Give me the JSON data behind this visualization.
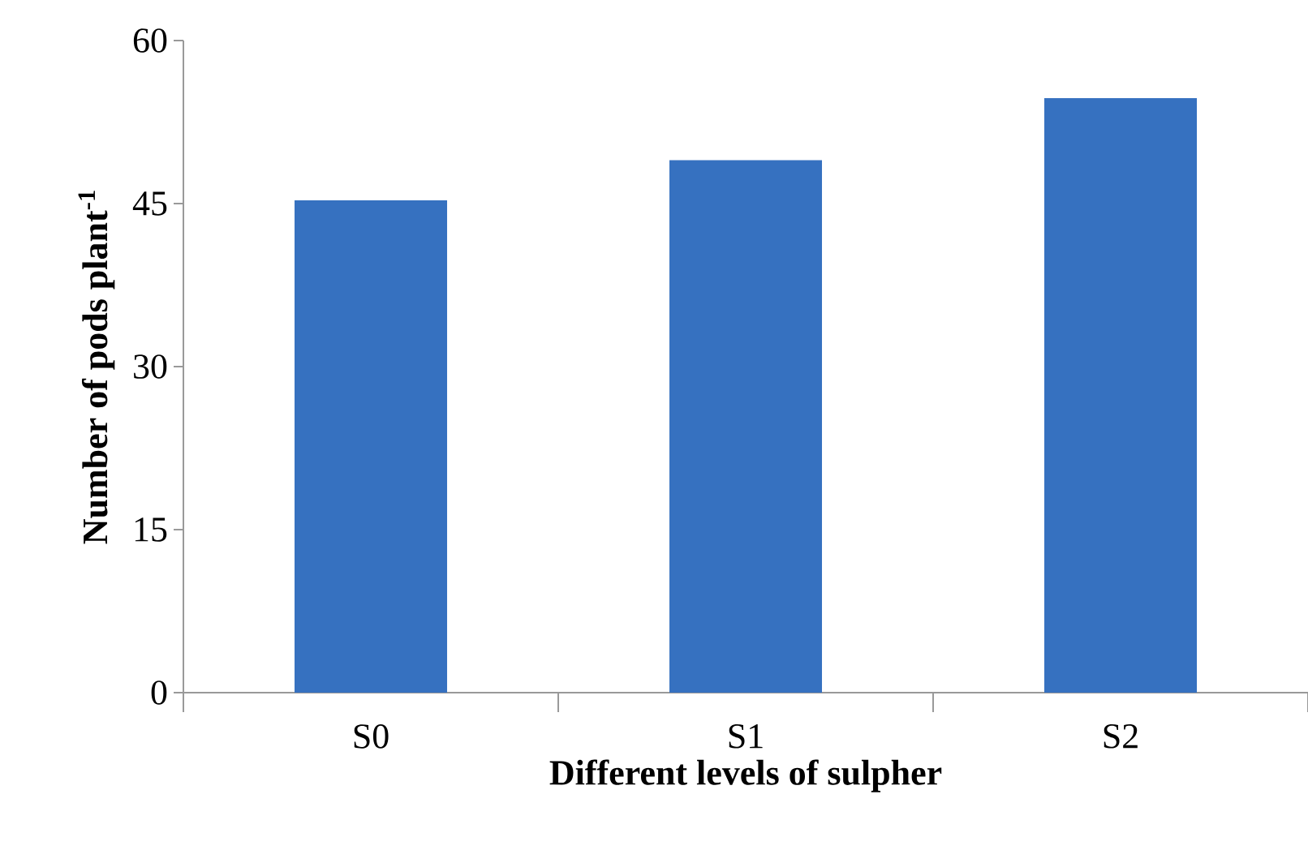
{
  "chart_data": {
    "type": "bar",
    "xlabel": "Different levels of sulpher",
    "ylabel": "Number of pods plant$^{-1}$",
    "categories": [
      "S0",
      "S1",
      "S2"
    ],
    "values": [
      45.3,
      49.0,
      54.7
    ],
    "color": "#3671c0",
    "ylim": [
      0,
      60
    ],
    "yticks": [
      0,
      15,
      30,
      45,
      60
    ]
  }
}
